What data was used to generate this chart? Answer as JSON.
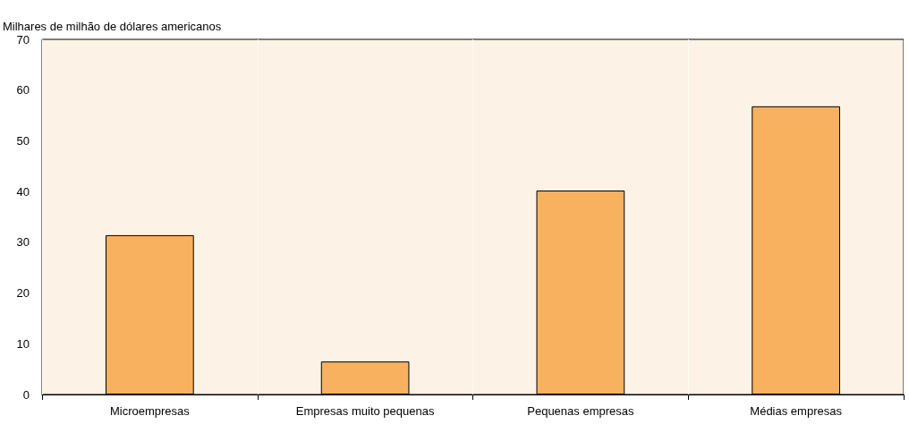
{
  "chart_data": {
    "type": "bar",
    "ylabel": "Milhares de milhão de dólares americanos",
    "categories": [
      "Microempresas",
      "Empresas muito pequenas",
      "Pequenas empresas",
      "Médias empresas"
    ],
    "values": [
      31.4,
      6.5,
      40.2,
      56.8
    ],
    "color": "#f7b15f",
    "ylim": [
      0,
      70
    ],
    "yticks": [
      0,
      10,
      20,
      30,
      40,
      50,
      60,
      70
    ],
    "grid": "x"
  }
}
